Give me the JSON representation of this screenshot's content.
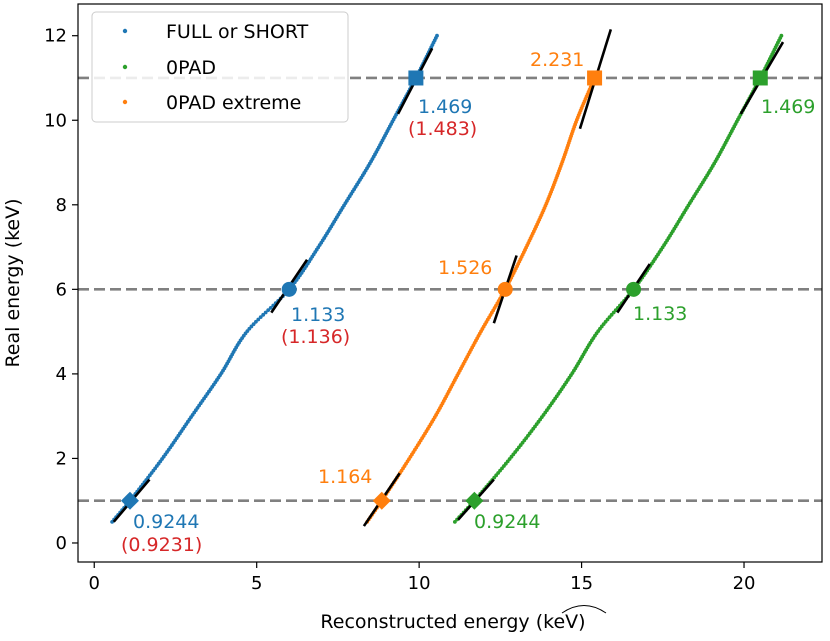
{
  "chart_data": {
    "type": "scatter",
    "xlabel": "Reconstructed energy (keV)",
    "xlabel_prefix": "Reconstructed energy (",
    "xlabel_unit": "keV",
    "xlabel_suffix": ")",
    "ylabel": "Real energy (keV)",
    "xlim": [
      -0.5,
      22.4
    ],
    "ylim": [
      -0.45,
      12.75
    ],
    "xticks": [
      0,
      5,
      10,
      15,
      20
    ],
    "yticks": [
      0,
      2,
      4,
      6,
      8,
      10,
      12
    ],
    "grid": false,
    "legend_position": "upper-left",
    "reference_lines": [
      1,
      6,
      11
    ],
    "colors": {
      "blue": "#1f77b4",
      "orange": "#ff7f0e",
      "green": "#2ca02c",
      "red": "#d62728",
      "dashed": "#808080"
    },
    "series": [
      {
        "name": "FULL or SHORT",
        "color": "#1f77b4",
        "curve": [
          {
            "x": 0.55,
            "y": 0.5
          },
          {
            "x": 1.1,
            "y": 1.0
          },
          {
            "x": 2.1,
            "y": 2.0
          },
          {
            "x": 3.0,
            "y": 3.0
          },
          {
            "x": 3.9,
            "y": 4.0
          },
          {
            "x": 4.7,
            "y": 5.0
          },
          {
            "x": 6.0,
            "y": 6.0
          },
          {
            "x": 6.9,
            "y": 7.0
          },
          {
            "x": 7.7,
            "y": 8.0
          },
          {
            "x": 8.5,
            "y": 9.0
          },
          {
            "x": 9.2,
            "y": 10.0
          },
          {
            "x": 9.9,
            "y": 11.0
          },
          {
            "x": 10.55,
            "y": 12.0
          }
        ],
        "markers": [
          {
            "shape": "diamond",
            "x": 1.1,
            "y": 1,
            "slope": "0.9244",
            "slope_alt": "(0.9231)"
          },
          {
            "shape": "circle",
            "x": 6.0,
            "y": 6,
            "slope": "1.133",
            "slope_alt": "(1.136)"
          },
          {
            "shape": "square",
            "x": 9.9,
            "y": 11,
            "slope": "1.469",
            "slope_alt": "(1.483)"
          }
        ]
      },
      {
        "name": "0PAD",
        "color": "#2ca02c",
        "curve": [
          {
            "x": 11.1,
            "y": 0.5
          },
          {
            "x": 11.7,
            "y": 1.0
          },
          {
            "x": 12.8,
            "y": 2.0
          },
          {
            "x": 13.8,
            "y": 3.0
          },
          {
            "x": 14.7,
            "y": 4.0
          },
          {
            "x": 15.5,
            "y": 5.0
          },
          {
            "x": 16.6,
            "y": 6.0
          },
          {
            "x": 17.5,
            "y": 7.0
          },
          {
            "x": 18.3,
            "y": 8.0
          },
          {
            "x": 19.1,
            "y": 9.0
          },
          {
            "x": 19.8,
            "y": 10.0
          },
          {
            "x": 20.5,
            "y": 11.0
          },
          {
            "x": 21.15,
            "y": 12.0
          }
        ],
        "markers": [
          {
            "shape": "diamond",
            "x": 11.7,
            "y": 1,
            "slope": "0.9244"
          },
          {
            "shape": "circle",
            "x": 16.6,
            "y": 6,
            "slope": "1.133"
          },
          {
            "shape": "square",
            "x": 20.5,
            "y": 11,
            "slope": "1.469"
          }
        ]
      },
      {
        "name": "0PAD extreme",
        "color": "#ff7f0e",
        "curve": [
          {
            "x": 8.4,
            "y": 0.5
          },
          {
            "x": 8.85,
            "y": 1.0
          },
          {
            "x": 9.7,
            "y": 2.0
          },
          {
            "x": 10.5,
            "y": 3.0
          },
          {
            "x": 11.2,
            "y": 4.0
          },
          {
            "x": 11.9,
            "y": 5.0
          },
          {
            "x": 12.65,
            "y": 6.0
          },
          {
            "x": 13.3,
            "y": 7.0
          },
          {
            "x": 13.9,
            "y": 8.0
          },
          {
            "x": 14.4,
            "y": 9.0
          },
          {
            "x": 14.85,
            "y": 10.0
          },
          {
            "x": 15.4,
            "y": 11.0
          }
        ],
        "markers": [
          {
            "shape": "diamond",
            "x": 8.85,
            "y": 1,
            "slope": "1.164"
          },
          {
            "shape": "circle",
            "x": 12.65,
            "y": 6,
            "slope": "1.526"
          },
          {
            "shape": "square",
            "x": 15.4,
            "y": 11,
            "slope": "2.231"
          }
        ]
      }
    ],
    "tangent_lines": [
      {
        "color": "blue",
        "segments": [
          [
            0.6,
            0.5,
            1.7,
            1.5
          ],
          [
            5.45,
            5.45,
            6.55,
            6.7
          ],
          [
            9.35,
            10.15,
            10.4,
            11.7
          ]
        ]
      },
      {
        "color": "green",
        "segments": [
          [
            11.2,
            0.55,
            12.3,
            1.5
          ],
          [
            16.1,
            5.45,
            17.1,
            6.6
          ],
          [
            19.9,
            10.15,
            21.2,
            11.85
          ]
        ]
      },
      {
        "color": "orange",
        "segments": [
          [
            8.3,
            0.4,
            9.4,
            1.65
          ],
          [
            12.3,
            5.2,
            13.0,
            6.8
          ],
          [
            14.95,
            9.8,
            15.9,
            12.15
          ]
        ]
      }
    ]
  }
}
